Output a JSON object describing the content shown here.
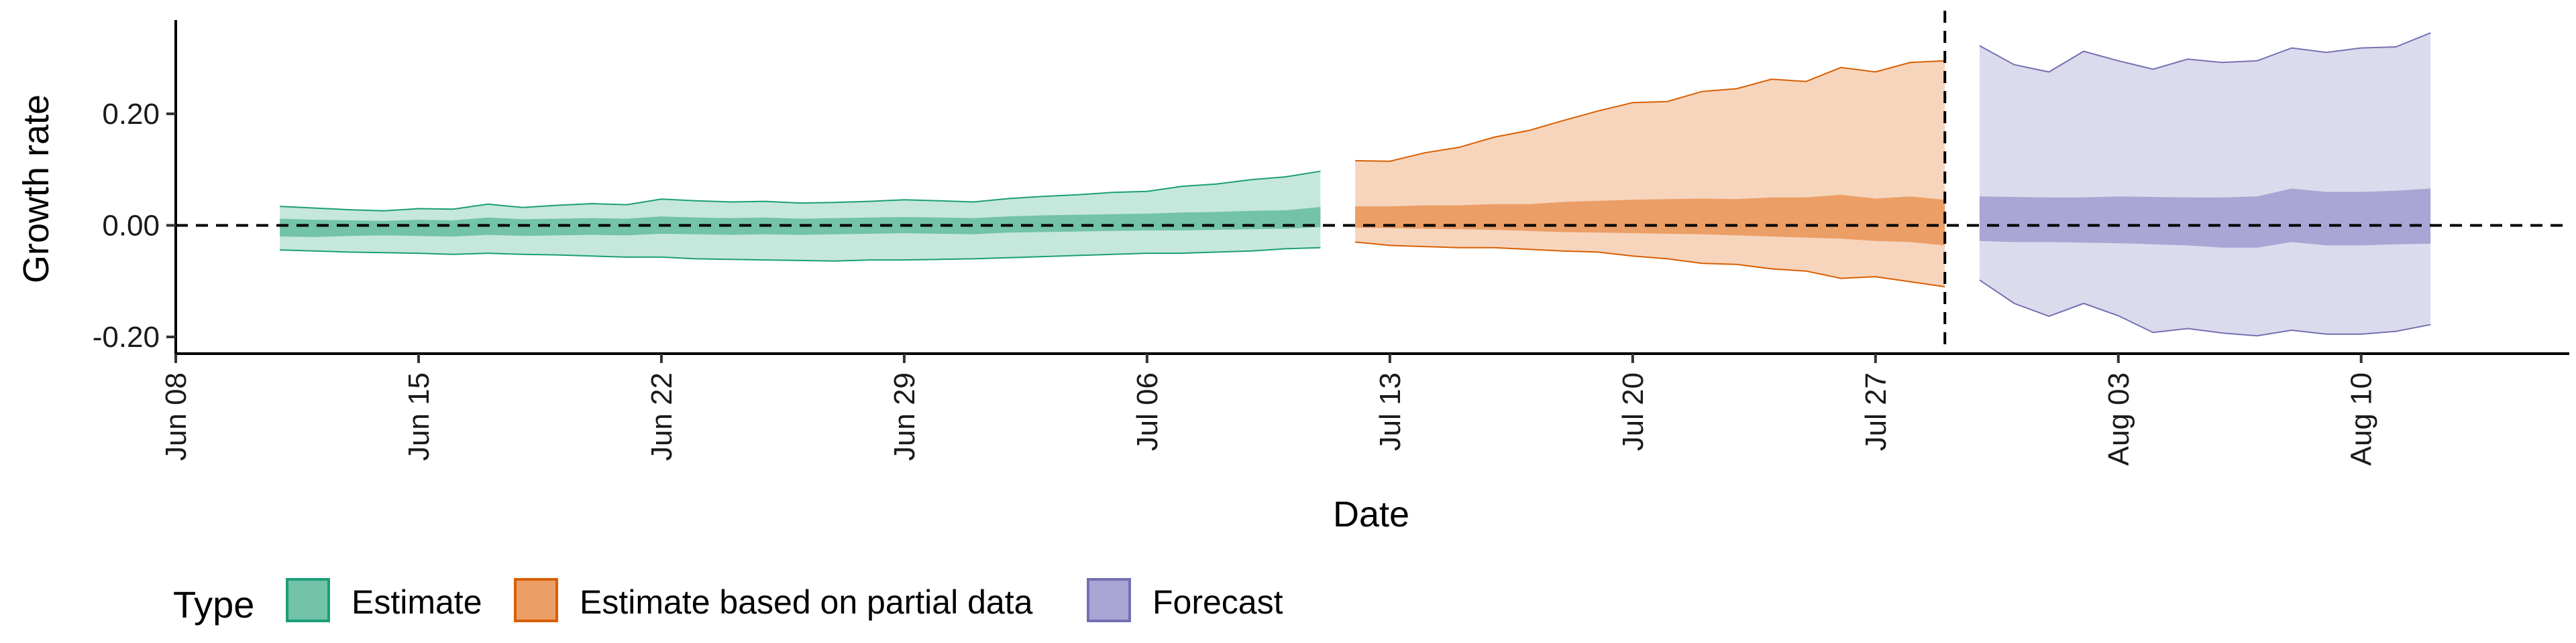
{
  "chart_data": {
    "type": "area",
    "xlabel": "Date",
    "ylabel": "Growth rate",
    "x_range": [
      "2020-06-08",
      "2020-08-16"
    ],
    "ylim": [
      -0.23,
      0.38
    ],
    "x_ticks": [
      {
        "date": "2020-06-08",
        "label": "Jun 08"
      },
      {
        "date": "2020-06-15",
        "label": "Jun 15"
      },
      {
        "date": "2020-06-22",
        "label": "Jun 22"
      },
      {
        "date": "2020-06-29",
        "label": "Jun 29"
      },
      {
        "date": "2020-07-06",
        "label": "Jul 06"
      },
      {
        "date": "2020-07-13",
        "label": "Jul 13"
      },
      {
        "date": "2020-07-20",
        "label": "Jul 20"
      },
      {
        "date": "2020-07-27",
        "label": "Jul 27"
      },
      {
        "date": "2020-08-03",
        "label": "Aug 03"
      },
      {
        "date": "2020-08-10",
        "label": "Aug 10"
      }
    ],
    "y_ticks": [
      {
        "value": 0.2,
        "label": "0.20"
      },
      {
        "value": 0.0,
        "label": "0.00"
      },
      {
        "value": -0.2,
        "label": "-0.20"
      }
    ],
    "reference_lines": {
      "horizontal_y": 0.0,
      "vertical_date": "2020-07-29"
    },
    "grid": false,
    "legend": {
      "title": "Type",
      "position": "bottom-left",
      "entries": [
        {
          "label": "Estimate",
          "fill": "#72c3a8",
          "stroke": "#1b9e77"
        },
        {
          "label": "Estimate based on partial data",
          "fill": "#eb9e66",
          "stroke": "#d95f02"
        },
        {
          "label": "Forecast",
          "fill": "#a9a5d4",
          "stroke": "#7570b3"
        }
      ]
    },
    "series": [
      {
        "name": "Estimate",
        "outer_fill": "#c6e7dc",
        "inner_fill": "#72c3a8",
        "stroke": "#1b9e77",
        "x": [
          "2020-06-11",
          "2020-06-12",
          "2020-06-13",
          "2020-06-14",
          "2020-06-15",
          "2020-06-16",
          "2020-06-17",
          "2020-06-18",
          "2020-06-19",
          "2020-06-20",
          "2020-06-21",
          "2020-06-22",
          "2020-06-23",
          "2020-06-24",
          "2020-06-25",
          "2020-06-26",
          "2020-06-27",
          "2020-06-28",
          "2020-06-29",
          "2020-06-30",
          "2020-07-01",
          "2020-07-02",
          "2020-07-03",
          "2020-07-04",
          "2020-07-05",
          "2020-07-06",
          "2020-07-07",
          "2020-07-08",
          "2020-07-09",
          "2020-07-10",
          "2020-07-11"
        ],
        "upper90": [
          0.034,
          0.031,
          0.028,
          0.026,
          0.03,
          0.029,
          0.038,
          0.032,
          0.036,
          0.039,
          0.037,
          0.047,
          0.044,
          0.042,
          0.043,
          0.04,
          0.041,
          0.043,
          0.046,
          0.044,
          0.042,
          0.048,
          0.052,
          0.055,
          0.059,
          0.061,
          0.07,
          0.074,
          0.082,
          0.087,
          0.097
        ],
        "upper50": [
          0.012,
          0.01,
          0.009,
          0.008,
          0.01,
          0.009,
          0.014,
          0.011,
          0.012,
          0.013,
          0.012,
          0.016,
          0.014,
          0.013,
          0.014,
          0.012,
          0.013,
          0.014,
          0.015,
          0.014,
          0.013,
          0.016,
          0.018,
          0.019,
          0.02,
          0.021,
          0.023,
          0.024,
          0.026,
          0.027,
          0.033
        ],
        "lower50": [
          -0.02,
          -0.021,
          -0.019,
          -0.018,
          -0.019,
          -0.02,
          -0.017,
          -0.019,
          -0.018,
          -0.017,
          -0.018,
          -0.015,
          -0.016,
          -0.017,
          -0.016,
          -0.017,
          -0.016,
          -0.015,
          -0.014,
          -0.015,
          -0.016,
          -0.013,
          -0.012,
          -0.011,
          -0.01,
          -0.009,
          -0.009,
          -0.008,
          -0.007,
          -0.006,
          -0.003
        ],
        "lower90": [
          -0.044,
          -0.046,
          -0.048,
          -0.049,
          -0.05,
          -0.052,
          -0.05,
          -0.052,
          -0.053,
          -0.055,
          -0.057,
          -0.057,
          -0.06,
          -0.061,
          -0.062,
          -0.063,
          -0.064,
          -0.062,
          -0.062,
          -0.061,
          -0.06,
          -0.058,
          -0.056,
          -0.054,
          -0.052,
          -0.05,
          -0.05,
          -0.048,
          -0.046,
          -0.042,
          -0.04
        ]
      },
      {
        "name": "Estimate based on partial data",
        "outer_fill": "#f7d5bd",
        "inner_fill": "#eb9e66",
        "stroke": "#d95f02",
        "x": [
          "2020-07-12",
          "2020-07-13",
          "2020-07-14",
          "2020-07-15",
          "2020-07-16",
          "2020-07-17",
          "2020-07-18",
          "2020-07-19",
          "2020-07-20",
          "2020-07-21",
          "2020-07-22",
          "2020-07-23",
          "2020-07-24",
          "2020-07-25",
          "2020-07-26",
          "2020-07-27",
          "2020-07-28",
          "2020-07-29"
        ],
        "upper90": [
          0.116,
          0.115,
          0.13,
          0.14,
          0.158,
          0.17,
          0.188,
          0.205,
          0.22,
          0.222,
          0.24,
          0.245,
          0.262,
          0.258,
          0.283,
          0.275,
          0.292,
          0.295
        ],
        "upper50": [
          0.034,
          0.034,
          0.036,
          0.036,
          0.038,
          0.038,
          0.042,
          0.044,
          0.046,
          0.047,
          0.048,
          0.047,
          0.05,
          0.05,
          0.055,
          0.048,
          0.052,
          0.046
        ],
        "lower50": [
          -0.004,
          -0.005,
          -0.006,
          -0.007,
          -0.008,
          -0.01,
          -0.012,
          -0.013,
          -0.014,
          -0.015,
          -0.016,
          -0.018,
          -0.02,
          -0.022,
          -0.024,
          -0.028,
          -0.03,
          -0.036
        ],
        "lower90": [
          -0.03,
          -0.036,
          -0.038,
          -0.04,
          -0.04,
          -0.043,
          -0.046,
          -0.048,
          -0.055,
          -0.06,
          -0.068,
          -0.07,
          -0.078,
          -0.082,
          -0.095,
          -0.092,
          -0.101,
          -0.11
        ]
      },
      {
        "name": "Forecast",
        "outer_fill": "#dcdbed",
        "inner_fill": "#a9a5d4",
        "stroke": "#7570b3",
        "x": [
          "2020-07-30",
          "2020-07-31",
          "2020-08-01",
          "2020-08-02",
          "2020-08-03",
          "2020-08-04",
          "2020-08-05",
          "2020-08-06",
          "2020-08-07",
          "2020-08-08",
          "2020-08-09",
          "2020-08-10",
          "2020-08-11",
          "2020-08-12"
        ],
        "upper90": [
          0.322,
          0.288,
          0.275,
          0.312,
          0.295,
          0.28,
          0.298,
          0.292,
          0.295,
          0.318,
          0.31,
          0.318,
          0.32,
          0.345
        ],
        "upper50": [
          0.052,
          0.051,
          0.05,
          0.05,
          0.052,
          0.051,
          0.05,
          0.05,
          0.052,
          0.066,
          0.06,
          0.06,
          0.062,
          0.066
        ],
        "lower50": [
          -0.028,
          -0.03,
          -0.03,
          -0.031,
          -0.032,
          -0.034,
          -0.036,
          -0.04,
          -0.04,
          -0.03,
          -0.036,
          -0.036,
          -0.034,
          -0.033
        ],
        "lower90": [
          -0.098,
          -0.14,
          -0.163,
          -0.14,
          -0.162,
          -0.192,
          -0.185,
          -0.193,
          -0.198,
          -0.188,
          -0.195,
          -0.195,
          -0.19,
          -0.178
        ]
      }
    ]
  }
}
